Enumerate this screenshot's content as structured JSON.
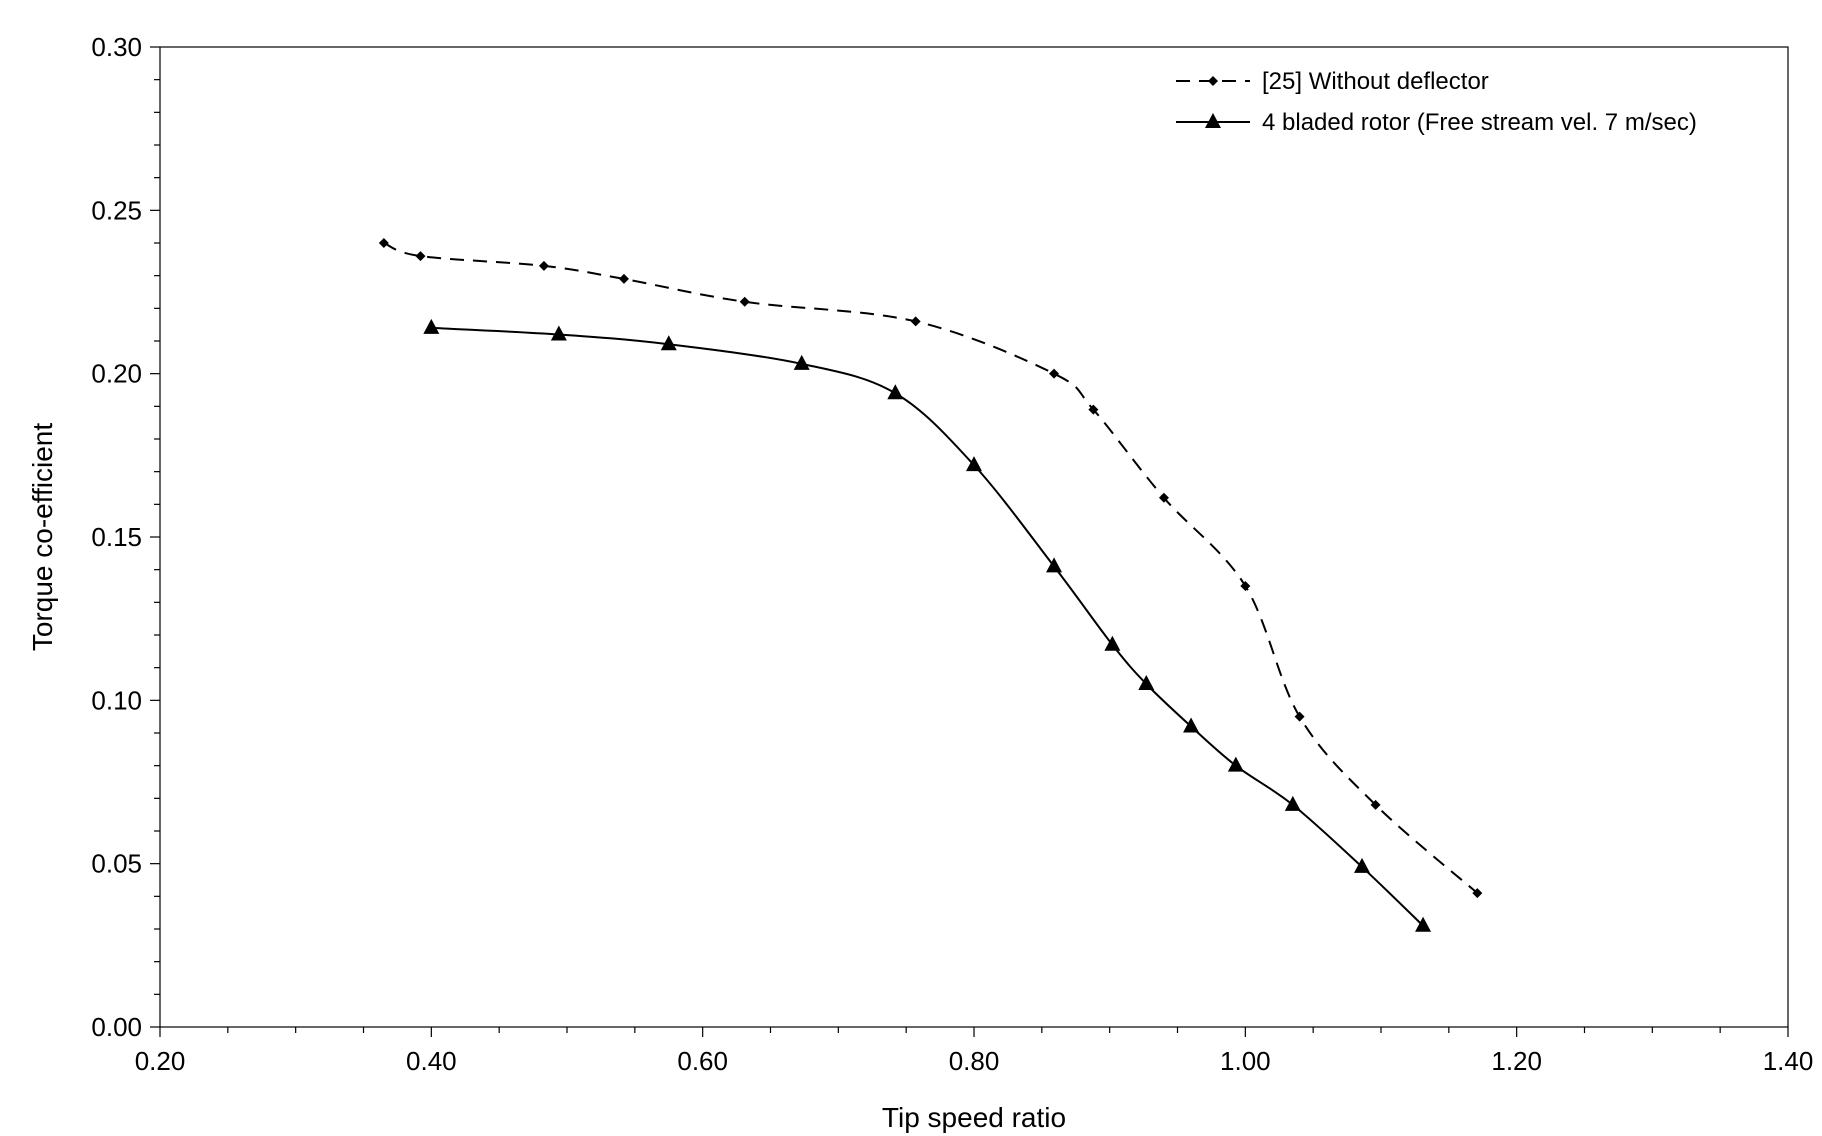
{
  "chart_data": {
    "type": "line",
    "title": "",
    "xlabel": "Tip speed ratio",
    "ylabel": "Torque co-efficient",
    "xlim": [
      0.2,
      1.4
    ],
    "ylim": [
      0.0,
      0.3
    ],
    "xticks": [
      "0.20",
      "0.40",
      "0.60",
      "0.80",
      "1.00",
      "1.20",
      "1.40"
    ],
    "yticks": [
      "0.00",
      "0.05",
      "0.10",
      "0.15",
      "0.20",
      "0.25",
      "0.30"
    ],
    "grid": false,
    "legend_position": "top-right",
    "series": [
      {
        "name": "[25] Without deflector",
        "style": "dashed",
        "marker": "diamond",
        "color": "#000000",
        "x": [
          0.365,
          0.392,
          0.483,
          0.542,
          0.631,
          0.757,
          0.859,
          0.888,
          0.94,
          1.0,
          1.04,
          1.096,
          1.171
        ],
        "y": [
          0.24,
          0.236,
          0.233,
          0.229,
          0.222,
          0.216,
          0.2,
          0.189,
          0.162,
          0.135,
          0.095,
          0.068,
          0.041
        ]
      },
      {
        "name": "4 bladed rotor (Free stream vel. 7 m/sec)",
        "style": "solid",
        "marker": "triangle",
        "color": "#000000",
        "x": [
          0.4,
          0.494,
          0.575,
          0.673,
          0.742,
          0.8,
          0.859,
          0.902,
          0.927,
          0.96,
          0.993,
          1.035,
          1.086,
          1.131
        ],
        "y": [
          0.214,
          0.212,
          0.209,
          0.203,
          0.194,
          0.172,
          0.141,
          0.117,
          0.105,
          0.092,
          0.08,
          0.068,
          0.049,
          0.031
        ]
      }
    ]
  }
}
